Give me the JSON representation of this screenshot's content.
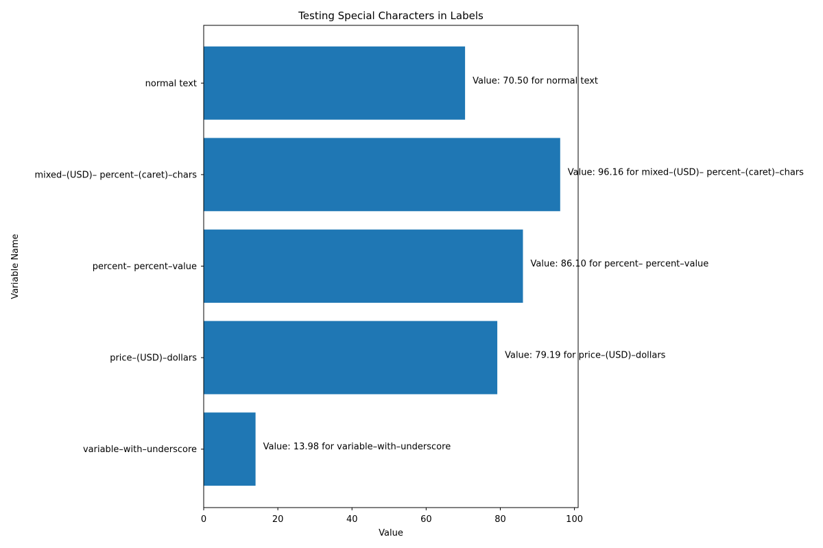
{
  "chart_data": {
    "type": "bar",
    "orientation": "horizontal",
    "title": "Testing Special Characters in Labels",
    "xlabel": "Value",
    "ylabel": "Variable Name",
    "xlim": [
      0,
      101
    ],
    "xticks": [
      0,
      20,
      40,
      60,
      80,
      100
    ],
    "categories": [
      "normal text",
      "mixed–(USD)– percent–(caret)–chars",
      "percent– percent–value",
      "price–(USD)–dollars",
      "variable–with–underscore"
    ],
    "values": [
      70.5,
      96.16,
      86.1,
      79.19,
      13.98
    ],
    "data_labels": [
      "Value: 70.50 for normal text",
      "Value: 96.16 for mixed–(USD)– percent–(caret)–chars",
      "Value: 86.10 for percent– percent–value",
      "Value: 79.19 for price–(USD)–dollars",
      "Value: 13.98 for variable–with–underscore"
    ],
    "bar_color": "#1f77b4",
    "grid": false,
    "legend": "none"
  }
}
